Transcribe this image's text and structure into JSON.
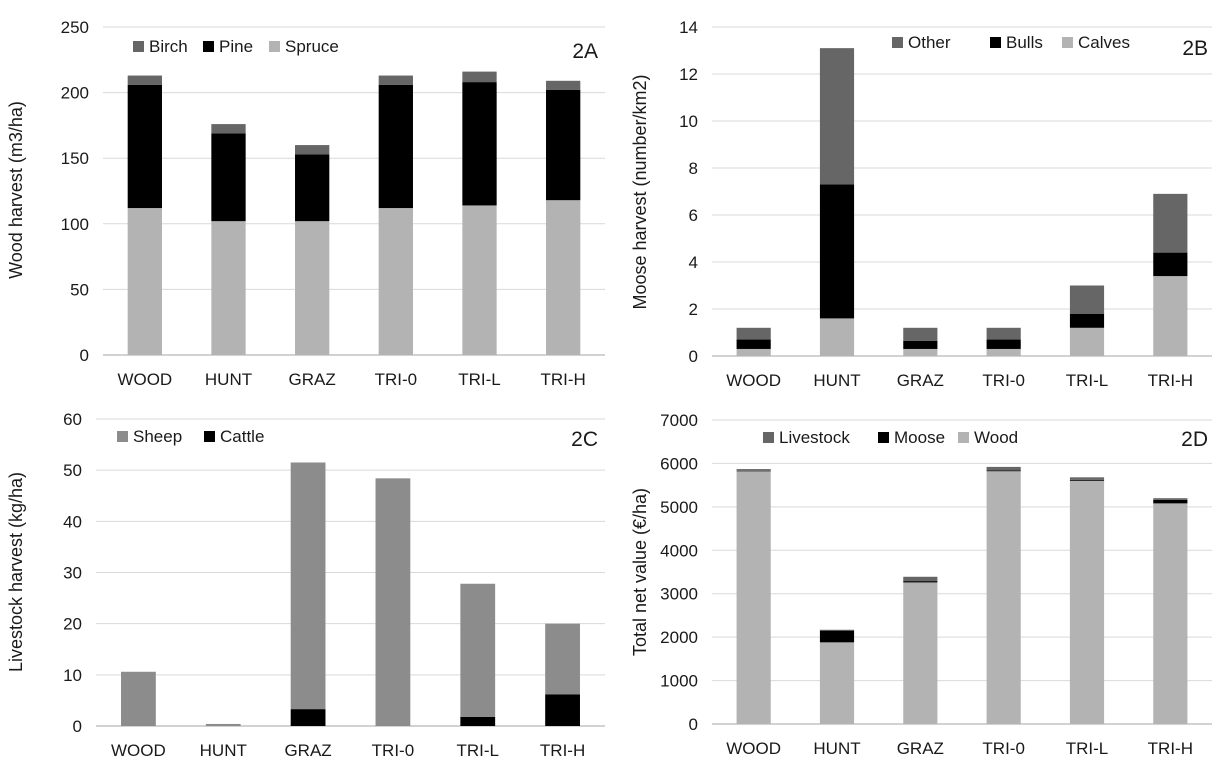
{
  "chart_data": [
    {
      "id": "2A",
      "type": "bar",
      "stacked": true,
      "panel_label": "2A",
      "ylabel": "Wood harvest (m3/ha)",
      "ylim": [
        0,
        250
      ],
      "yticks": [
        0,
        50,
        100,
        150,
        200,
        250
      ],
      "grid": true,
      "legend": "top-left",
      "categories": [
        "WOOD",
        "HUNT",
        "GRAZ",
        "TRI-0",
        "TRI-L",
        "TRI-H"
      ],
      "series": [
        {
          "name": "Spruce",
          "color": "#b3b3b3",
          "values": [
            112,
            102,
            102,
            112,
            114,
            118
          ]
        },
        {
          "name": "Pine",
          "color": "#000000",
          "values": [
            94,
            67,
            51,
            94,
            94,
            84
          ]
        },
        {
          "name": "Birch",
          "color": "#666666",
          "values": [
            7,
            7,
            7,
            7,
            8,
            7
          ]
        }
      ],
      "legend_order": [
        "Birch",
        "Pine",
        "Spruce"
      ]
    },
    {
      "id": "2B",
      "type": "bar",
      "stacked": true,
      "panel_label": "2B",
      "ylabel": "Moose harvest (number/km2)",
      "ylim": [
        0,
        14
      ],
      "yticks": [
        0,
        2,
        4,
        6,
        8,
        10,
        12,
        14
      ],
      "grid": true,
      "legend": "top-right",
      "categories": [
        "WOOD",
        "HUNT",
        "GRAZ",
        "TRI-0",
        "TRI-L",
        "TRI-H"
      ],
      "series": [
        {
          "name": "Calves",
          "color": "#b3b3b3",
          "values": [
            0.3,
            1.6,
            0.3,
            0.3,
            1.2,
            3.4
          ]
        },
        {
          "name": "Bulls",
          "color": "#000000",
          "values": [
            0.4,
            5.7,
            0.35,
            0.4,
            0.6,
            1.0
          ]
        },
        {
          "name": "Other",
          "color": "#666666",
          "values": [
            0.5,
            5.8,
            0.55,
            0.5,
            1.2,
            2.5
          ]
        }
      ],
      "legend_order": [
        "Other",
        "Bulls",
        "Calves"
      ]
    },
    {
      "id": "2C",
      "type": "bar",
      "stacked": true,
      "panel_label": "2C",
      "ylabel": "Livestock harvest (kg/ha)",
      "ylim": [
        0,
        60
      ],
      "yticks": [
        0,
        10,
        20,
        30,
        40,
        50,
        60
      ],
      "grid": true,
      "legend": "top-left",
      "categories": [
        "WOOD",
        "HUNT",
        "GRAZ",
        "TRI-0",
        "TRI-L",
        "TRI-H"
      ],
      "series": [
        {
          "name": "Cattle",
          "color": "#000000",
          "values": [
            0,
            0,
            3.3,
            0,
            1.8,
            6.2
          ]
        },
        {
          "name": "Sheep",
          "color": "#8c8c8c",
          "values": [
            10.6,
            0.4,
            48.2,
            48.4,
            26.0,
            13.8
          ]
        }
      ],
      "legend_order": [
        "Sheep",
        "Cattle"
      ]
    },
    {
      "id": "2D",
      "type": "bar",
      "stacked": true,
      "panel_label": "2D",
      "ylabel": "Total net value (€/ha)",
      "ylim": [
        0,
        7000
      ],
      "yticks": [
        0,
        1000,
        2000,
        3000,
        4000,
        5000,
        6000,
        7000
      ],
      "grid": true,
      "legend": "top-left",
      "categories": [
        "WOOD",
        "HUNT",
        "GRAZ",
        "TRI-0",
        "TRI-L",
        "TRI-H"
      ],
      "series": [
        {
          "name": "Wood",
          "color": "#b3b3b3",
          "values": [
            5820,
            1880,
            3260,
            5820,
            5600,
            5080
          ]
        },
        {
          "name": "Moose",
          "color": "#000000",
          "values": [
            10,
            270,
            30,
            20,
            20,
            80
          ]
        },
        {
          "name": "Livestock",
          "color": "#666666",
          "values": [
            40,
            20,
            100,
            80,
            60,
            40
          ]
        }
      ],
      "legend_order": [
        "Livestock",
        "Moose",
        "Wood"
      ]
    }
  ]
}
